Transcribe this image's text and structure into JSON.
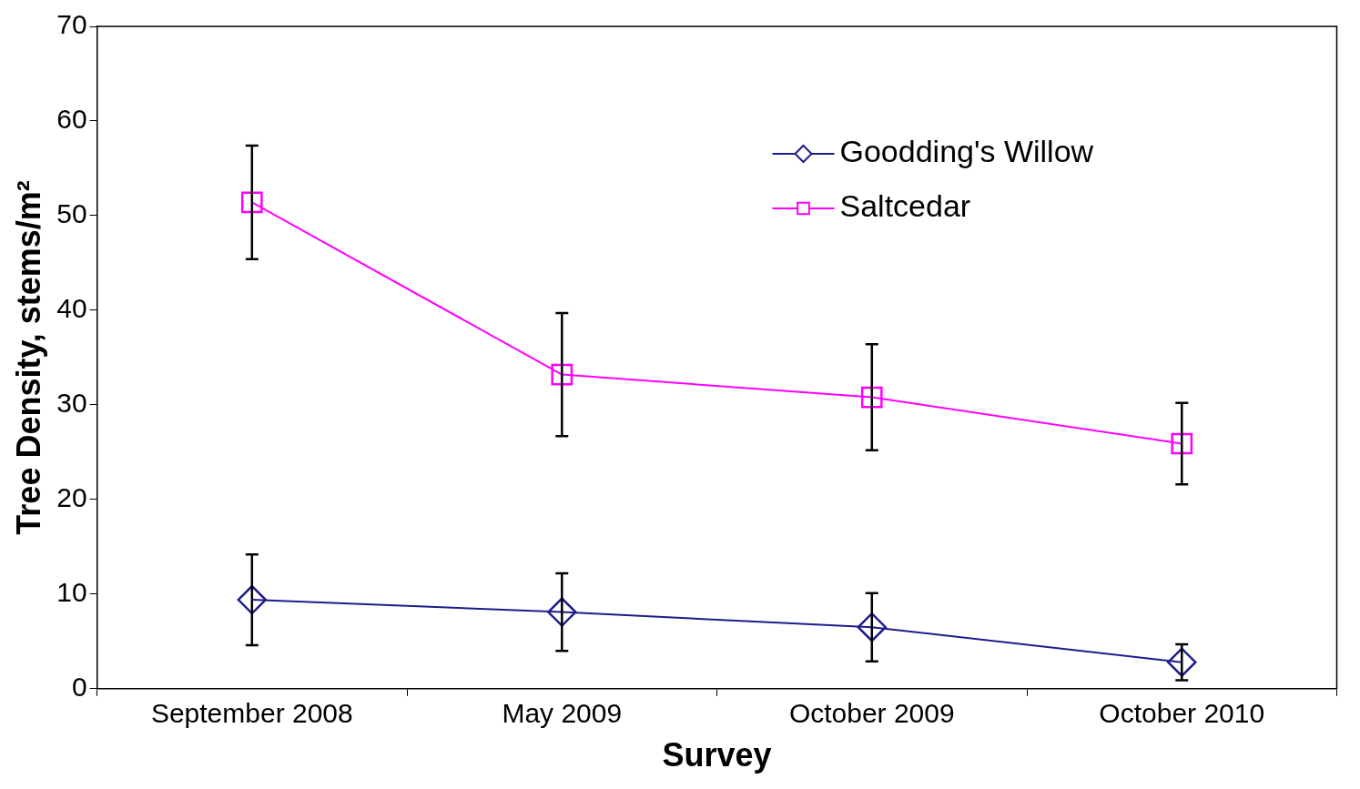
{
  "chart_data": {
    "type": "line",
    "xlabel": "Survey",
    "ylabel": "Tree Density, stems/m²",
    "categories": [
      "September 2008",
      "May 2009",
      "October 2009",
      "October 2010"
    ],
    "series": [
      {
        "name": "Goodding's Willow",
        "color": "#1c1c8c",
        "marker": "diamond",
        "values": [
          9.4,
          8.1,
          6.5,
          2.8
        ],
        "errors": [
          4.8,
          4.1,
          3.6,
          1.9
        ]
      },
      {
        "name": "Saltcedar",
        "color": "#ff00ff",
        "marker": "square",
        "values": [
          51.4,
          33.2,
          30.8,
          25.9
        ],
        "errors": [
          6.0,
          6.5,
          5.6,
          4.3
        ]
      }
    ],
    "ylim": [
      0,
      70
    ],
    "yticks": [
      0,
      10,
      20,
      30,
      40,
      50,
      60,
      70
    ],
    "grid": false,
    "legend": "top right",
    "line_style": "solid"
  }
}
